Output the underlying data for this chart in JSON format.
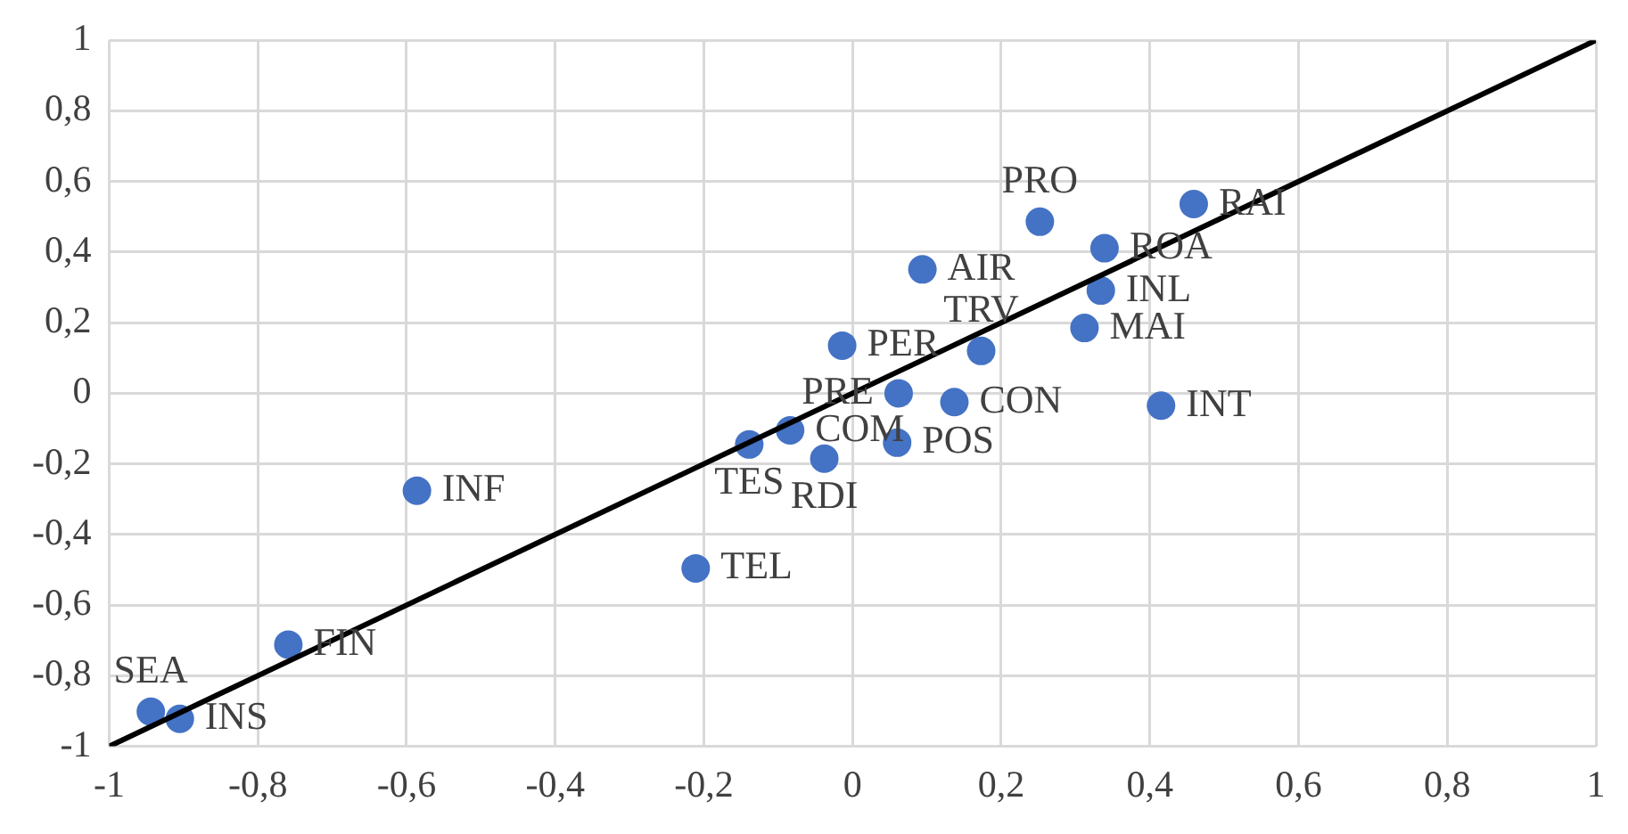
{
  "chart_data": {
    "type": "scatter",
    "x": [
      0.459,
      0.252,
      0.339,
      0.094,
      0.334,
      0.312,
      -0.014,
      0.173,
      0.062,
      0.137,
      0.415,
      -0.084,
      -0.139,
      0.06,
      -0.038,
      -0.586,
      -0.211,
      -0.759,
      -0.944,
      -0.905
    ],
    "series": [
      {
        "color": "#4472c4",
        "values": [
          0.536,
          0.486,
          0.411,
          0.351,
          0.291,
          0.185,
          0.135,
          0.12,
          0.0,
          -0.025,
          -0.035,
          -0.105,
          -0.145,
          -0.14,
          -0.185,
          -0.276,
          -0.496,
          -0.712,
          -0.902,
          -0.922
        ]
      },
      {
        "type": "line",
        "marker": "none",
        "color": "#000000",
        "x": [
          -1,
          1
        ],
        "values": [
          -1,
          1
        ]
      }
    ],
    "annotations": [
      {
        "text": "RAI",
        "x": 0.459,
        "y": 0.536
      },
      {
        "text": "PRO",
        "x": 0.252,
        "y": 0.486
      },
      {
        "text": "ROA",
        "x": 0.339,
        "y": 0.411
      },
      {
        "text": "AIR",
        "x": 0.094,
        "y": 0.351
      },
      {
        "text": "INL",
        "x": 0.334,
        "y": 0.291
      },
      {
        "text": "MAI",
        "x": 0.312,
        "y": 0.185
      },
      {
        "text": "PER",
        "x": -0.014,
        "y": 0.135
      },
      {
        "text": "TRV",
        "x": 0.173,
        "y": 0.12
      },
      {
        "text": "PRE",
        "x": 0.062,
        "y": 0.0
      },
      {
        "text": "CON",
        "x": 0.137,
        "y": -0.025
      },
      {
        "text": "INT",
        "x": 0.415,
        "y": -0.035
      },
      {
        "text": "COM",
        "x": -0.084,
        "y": -0.105
      },
      {
        "text": "TES",
        "x": -0.139,
        "y": -0.145
      },
      {
        "text": "POS",
        "x": 0.06,
        "y": -0.14
      },
      {
        "text": "RDI",
        "x": -0.038,
        "y": -0.185
      },
      {
        "text": "INF",
        "x": -0.586,
        "y": -0.276
      },
      {
        "text": "TEL",
        "x": -0.211,
        "y": -0.496
      },
      {
        "text": "FIN",
        "x": -0.759,
        "y": -0.712
      },
      {
        "text": "SEA",
        "x": -0.944,
        "y": -0.902
      },
      {
        "text": "INS",
        "x": -0.905,
        "y": -0.922
      }
    ],
    "xlim": [
      -1,
      1
    ],
    "ylim": [
      -1,
      1
    ],
    "xticks": [
      -1,
      {
        "value": -0.8,
        "label": "-0,8"
      },
      {
        "value": -0.6,
        "label": "-0,6"
      },
      {
        "value": -0.4,
        "label": "-0,4"
      },
      {
        "value": -0.2,
        "label": "-0,2"
      },
      0,
      {
        "value": 0.2,
        "label": "0,2"
      },
      {
        "value": 0.4,
        "label": "0,4"
      },
      {
        "value": 0.6,
        "label": "0,6"
      },
      {
        "value": 0.8,
        "label": "0,8"
      },
      1
    ],
    "yticks": [
      -1,
      {
        "value": -0.8,
        "label": "-0,8"
      },
      {
        "value": -0.6,
        "label": "-0,6"
      },
      {
        "value": -0.4,
        "label": "-0,4"
      },
      {
        "value": -0.2,
        "label": "-0,2"
      },
      0,
      {
        "value": 0.2,
        "label": "0,2"
      },
      {
        "value": 0.4,
        "label": "0,4"
      },
      {
        "value": 0.6,
        "label": "0,6"
      },
      {
        "value": 0.8,
        "label": "0,8"
      },
      1
    ],
    "grid": true,
    "marker": "circle",
    "legend": false
  }
}
